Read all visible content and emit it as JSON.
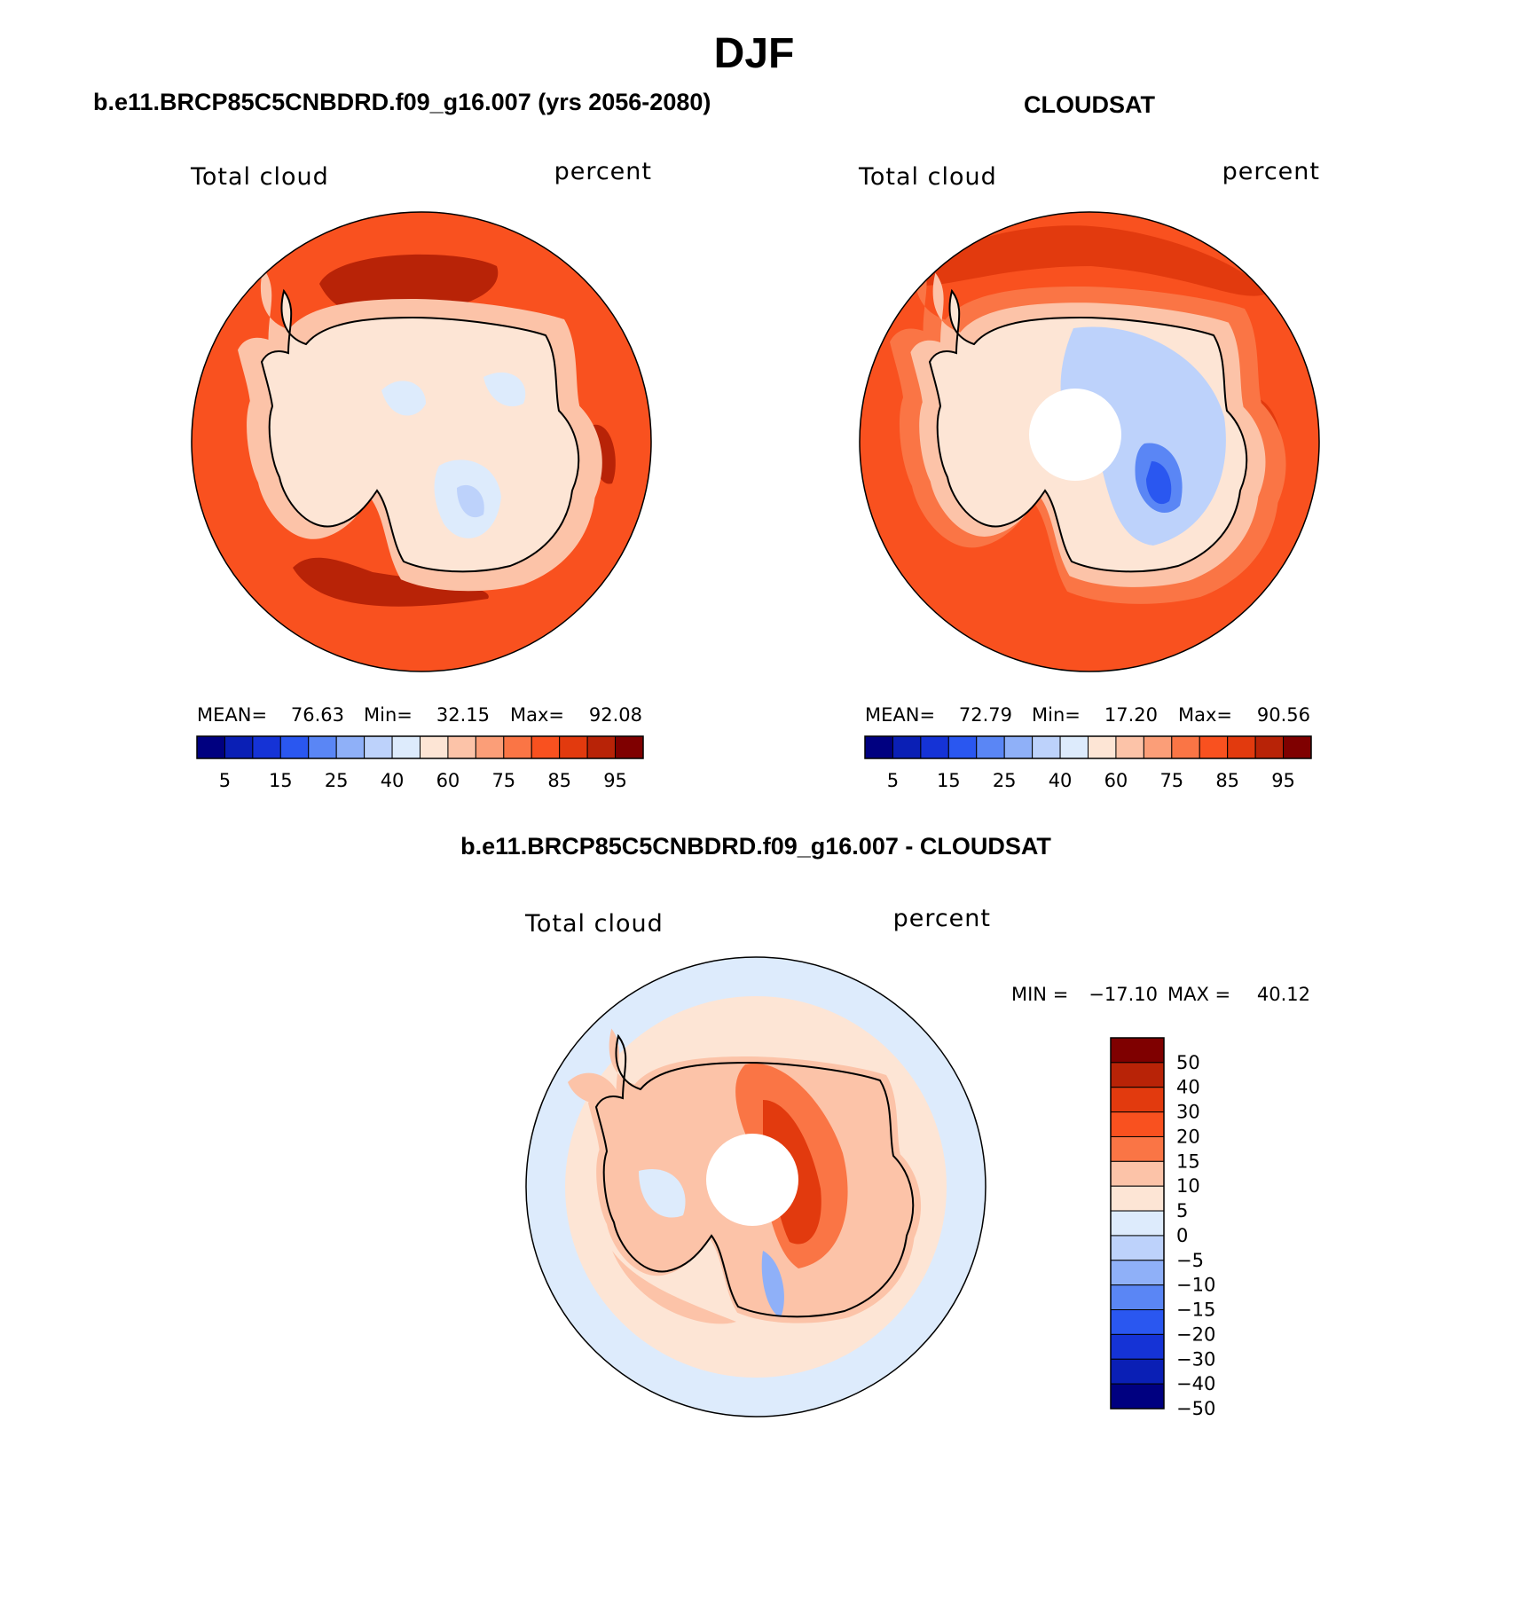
{
  "figure": {
    "title": "DJF",
    "top_left_title": "b.e11.BRCP85C5CNBDRD.f09_g16.007 (yrs 2056-2080)",
    "top_right_title": "CLOUDSAT",
    "bottom_title": "b.e11.BRCP85C5CNBDRD.f09_g16.007 - CLOUDSAT"
  },
  "chart_data": [
    {
      "type": "heatmap",
      "projection": "south-polar-stereographic",
      "variable_label": "Total cloud",
      "units_label": "percent",
      "stats": {
        "mean_label": "MEAN=",
        "mean": "76.63",
        "min_label": "Min=",
        "min": "32.15",
        "max_label": "Max=",
        "max": "92.08"
      },
      "colorbar": {
        "orientation": "horizontal",
        "tick_labels": [
          "5",
          "15",
          "25",
          "40",
          "60",
          "75",
          "85",
          "95"
        ],
        "colors": [
          "#000080",
          "#0a1fb5",
          "#1533d6",
          "#2a57f0",
          "#5a86f5",
          "#8fb0f8",
          "#bdd2fb",
          "#ddebfc",
          "#fde5d5",
          "#fcc3a8",
          "#fb9e78",
          "#fa7545",
          "#f9511f",
          "#e23a0e",
          "#b82307",
          "#7f0000"
        ]
      },
      "regions": {
        "outer_ring_level": "75-85",
        "storm_track_level": "85-95",
        "antarctic_interior_level": "40-60",
        "interior_low_level": "25-40"
      },
      "polar_gap": false
    },
    {
      "type": "heatmap",
      "projection": "south-polar-stereographic",
      "variable_label": "Total cloud",
      "units_label": "percent",
      "stats": {
        "mean_label": "MEAN=",
        "mean": "72.79",
        "min_label": "Min=",
        "min": "17.20",
        "max_label": "Max=",
        "max": "90.56"
      },
      "colorbar": {
        "orientation": "horizontal",
        "tick_labels": [
          "5",
          "15",
          "25",
          "40",
          "60",
          "75",
          "85",
          "95"
        ],
        "colors": [
          "#000080",
          "#0a1fb5",
          "#1533d6",
          "#2a57f0",
          "#5a86f5",
          "#8fb0f8",
          "#bdd2fb",
          "#ddebfc",
          "#fde5d5",
          "#fcc3a8",
          "#fb9e78",
          "#fa7545",
          "#f9511f",
          "#e23a0e",
          "#b82307",
          "#7f0000"
        ]
      },
      "regions": {
        "outer_ring_level": "75-85",
        "storm_track_level": "85-95",
        "antarctic_interior_level": "25-40",
        "interior_low_level": "15-25"
      },
      "polar_gap": true
    },
    {
      "type": "heatmap",
      "projection": "south-polar-stereographic",
      "variable_label": "Total cloud",
      "units_label": "percent",
      "stats": {
        "min_label": "MIN =",
        "min": "−17.10",
        "max_label": "MAX =",
        "max": "40.12"
      },
      "colorbar": {
        "orientation": "vertical",
        "tick_labels": [
          "50",
          "40",
          "30",
          "20",
          "15",
          "10",
          "5",
          "0",
          "−5",
          "−10",
          "−15",
          "−20",
          "−30",
          "−40",
          "−50"
        ],
        "colors": [
          "#7f0000",
          "#b82307",
          "#e23a0e",
          "#f9511f",
          "#fa7545",
          "#fcc3a8",
          "#fde5d5",
          "#ddebfc",
          "#bdd2fb",
          "#8fb0f8",
          "#5a86f5",
          "#2a57f0",
          "#1533d6",
          "#0a1fb5",
          "#000080"
        ]
      },
      "regions": {
        "outer_ring_level": "-5-0",
        "storm_track_level": "0-5",
        "antarctic_interior_level": "20-30",
        "interior_low_level": "-10-5"
      },
      "polar_gap": true
    }
  ]
}
